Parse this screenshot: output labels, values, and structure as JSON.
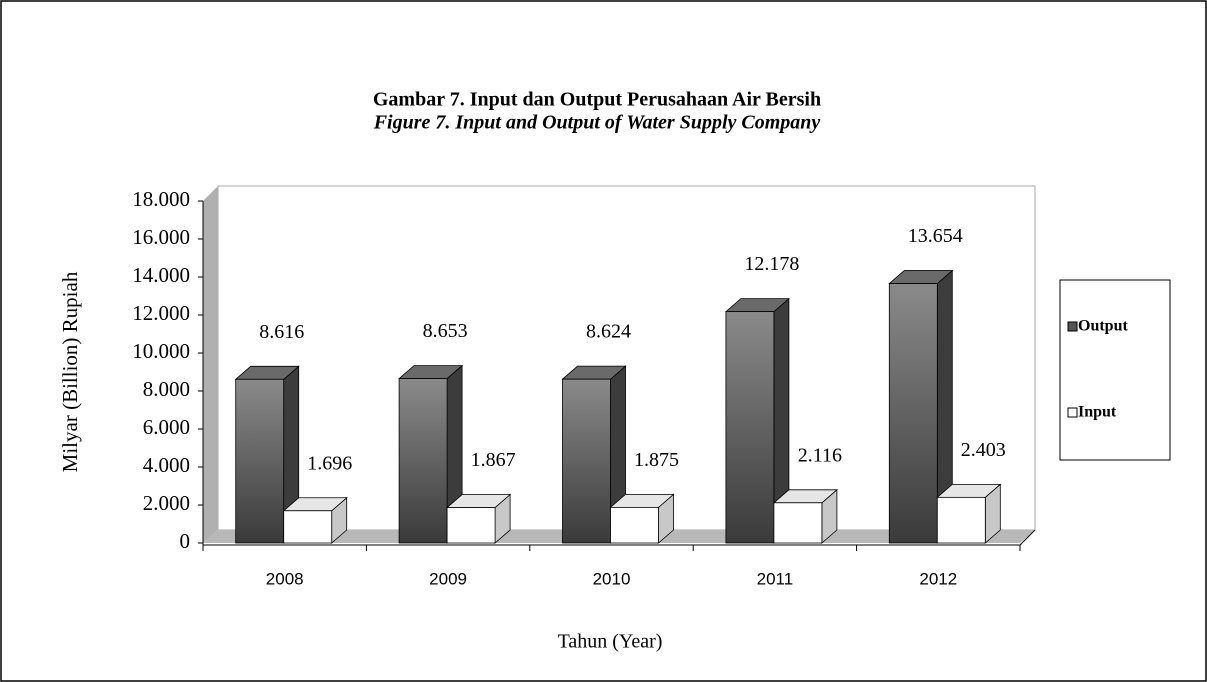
{
  "chart_data": {
    "type": "bar3d",
    "title": "Gambar 7. Input dan Output Perusahaan Air Bersih",
    "subtitle": "Figure 7. Input and Output of Water Supply Company",
    "y_label": "Milyar (Billion) Rupiah",
    "x_label": "Tahun (Year)",
    "categories": [
      "2008",
      "2009",
      "2010",
      "2011",
      "2012"
    ],
    "series": [
      {
        "name": "Output",
        "color": "#555555",
        "values": [
          8616,
          8653,
          8624,
          12178,
          13654
        ],
        "value_labels": [
          "8.616",
          "8.653",
          "8.624",
          "12.178",
          "13.654"
        ]
      },
      {
        "name": "Input",
        "color": "#ffffff",
        "values": [
          1696,
          1867,
          1875,
          2116,
          2403
        ],
        "value_labels": [
          "1.696",
          "1.867",
          "1.875",
          "2.116",
          "2.403"
        ]
      }
    ],
    "ylim": [
      0,
      18000
    ],
    "yticks": [
      0,
      {
        "value": 2000,
        "label": "2.000"
      },
      {
        "value": 4000,
        "label": "4.000"
      },
      {
        "value": 6000,
        "label": "6.000"
      },
      {
        "value": 8000,
        "label": "8.000"
      },
      {
        "value": 10000,
        "label": "10.000"
      },
      {
        "value": 12000,
        "label": "12.000"
      },
      {
        "value": 14000,
        "label": "14.000"
      },
      {
        "value": 16000,
        "label": "16.000"
      },
      {
        "value": 18000,
        "label": "18.000"
      }
    ],
    "legend": "right"
  }
}
